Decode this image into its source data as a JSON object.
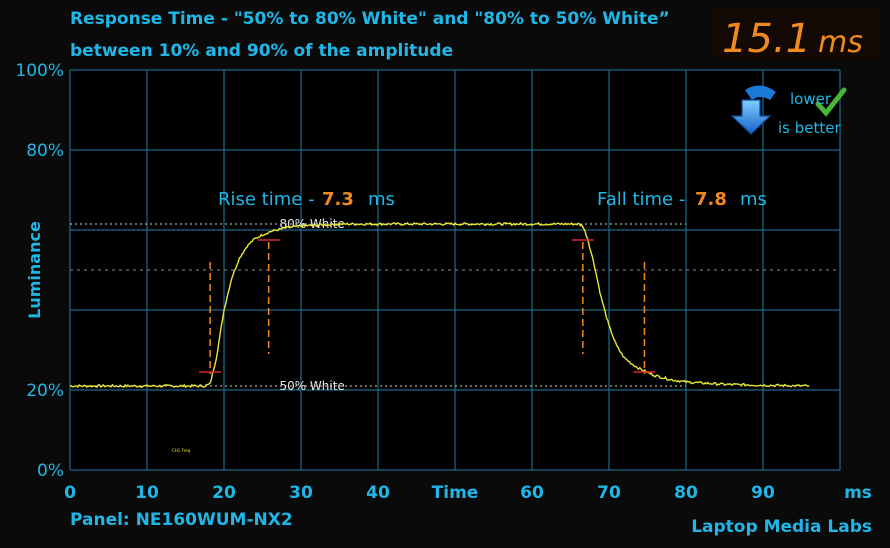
{
  "header": {
    "title_line1": "Response Time - \"50% to 80% White\" and \"80% to 50% White”",
    "title_line2": "between 10% and 90% of the amplitude",
    "total_value": "15.1",
    "total_unit": "ms"
  },
  "badge": {
    "line1": "lower",
    "line2": "is better",
    "icon": "down-arrow-icon",
    "check_icon": "check-icon"
  },
  "rise": {
    "label": "Rise time -",
    "value": "7.3",
    "unit": "ms"
  },
  "fall": {
    "label": "Fall time -",
    "value": "7.8",
    "unit": "ms"
  },
  "footer": {
    "panel": "Panel: NE160WUM-NX2",
    "brand": "Laptop Media Labs"
  },
  "colors": {
    "background": "#0a0a0a",
    "grid": "#1f7fa6",
    "axis_text": "#1fb7e8",
    "signal": "#e8e83a",
    "accent": "#f08a1e",
    "marker": "#d8282a",
    "note": "#e6e6e6"
  },
  "chart_data": {
    "type": "line",
    "title": "Response Time - \"50% to 80% White\" and \"80% to 50% White” between 10% and 90% of the amplitude",
    "xlabel": "Time",
    "ylabel": "Luminance",
    "x_unit": "ms",
    "xlim": [
      0,
      100
    ],
    "ylim": [
      0,
      100
    ],
    "x_ticks": [
      "0",
      "10",
      "20",
      "30",
      "40",
      "Time",
      "60",
      "70",
      "80",
      "90",
      "ms"
    ],
    "y_ticks": [
      {
        "value": 100,
        "label": "100%"
      },
      {
        "value": 80,
        "label": "80%"
      },
      {
        "value": 20,
        "label": "20%"
      },
      {
        "value": 0,
        "label": "0%"
      }
    ],
    "grid": true,
    "reference_lines": [
      {
        "value": 61.5,
        "label": "80% White"
      },
      {
        "value": 21,
        "label": "50% White"
      }
    ],
    "series": [
      {
        "x": [
          0,
          16,
          17.5,
          18.2,
          19,
          20,
          21,
          22,
          23,
          24,
          25,
          26,
          28,
          30,
          33,
          36,
          40,
          50,
          60,
          66,
          66.6,
          67.2,
          68,
          69,
          70,
          71,
          72,
          73,
          74,
          75,
          76,
          78,
          80,
          85,
          90,
          96
        ],
        "y": [
          21,
          21,
          21,
          21.5,
          28,
          40,
          48,
          53,
          56,
          57.8,
          58.8,
          59.6,
          60.5,
          61,
          61.3,
          61.5,
          61.5,
          61.5,
          61.5,
          61.5,
          61,
          58,
          52,
          43,
          36,
          31,
          28,
          26.5,
          25.3,
          24.4,
          23.6,
          22.6,
          22,
          21.4,
          21.2,
          21
        ]
      }
    ],
    "annotations": [
      {
        "type": "vline",
        "x": 18.2,
        "y_from": 52,
        "y_to": 24,
        "color": "accent"
      },
      {
        "type": "vline",
        "x": 25.8,
        "y_from": 57,
        "y_to": 29,
        "color": "accent"
      },
      {
        "type": "vline",
        "x": 66.6,
        "y_from": 57,
        "y_to": 29,
        "color": "accent"
      },
      {
        "type": "vline",
        "x": 74.6,
        "y_from": 52,
        "y_to": 24,
        "color": "accent"
      },
      {
        "type": "hmark",
        "x": 18.2,
        "y": 24.5,
        "color": "marker"
      },
      {
        "type": "hmark",
        "x": 25.8,
        "y": 57.5,
        "color": "marker"
      },
      {
        "type": "hmark",
        "x": 66.6,
        "y": 57.5,
        "color": "marker"
      },
      {
        "type": "hmark",
        "x": 74.6,
        "y": 24.5,
        "color": "marker"
      }
    ]
  }
}
